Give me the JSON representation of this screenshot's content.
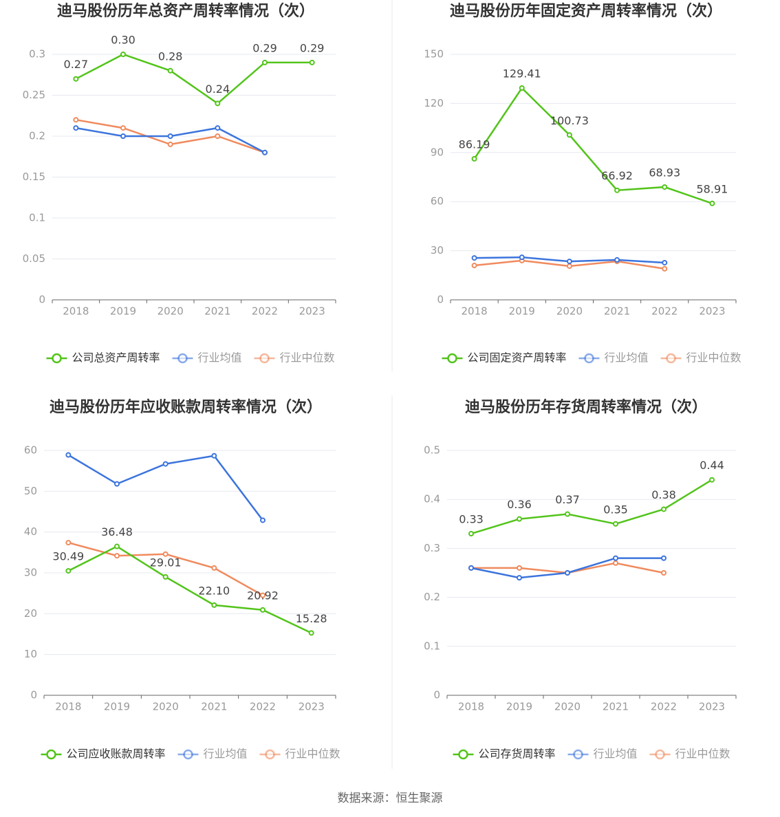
{
  "chart_data": [
    {
      "type": "line",
      "title": "迪马股份历年总资产周转率情况（次）",
      "categories": [
        "2018",
        "2019",
        "2020",
        "2021",
        "2022",
        "2023"
      ],
      "ylim": [
        0,
        0.3
      ],
      "yticks": [
        0,
        0.05,
        0.1,
        0.15,
        0.2,
        0.25,
        0.3
      ],
      "grid": true,
      "series": [
        {
          "name": "公司总资产周转率",
          "color": "#52c41a",
          "values": [
            0.27,
            0.3,
            0.28,
            0.24,
            0.29,
            0.29
          ],
          "value_labels": [
            "0.27",
            "0.30",
            "0.28",
            "0.24",
            "0.29",
            "0.29"
          ]
        },
        {
          "name": "行业均值",
          "color": "#3b74dd",
          "values": [
            0.21,
            0.2,
            0.2,
            0.21,
            0.18,
            null
          ]
        },
        {
          "name": "行业中位数",
          "color": "#f08a5d",
          "values": [
            0.22,
            0.21,
            0.19,
            0.2,
            0.18,
            null
          ]
        }
      ]
    },
    {
      "type": "line",
      "title": "迪马股份历年固定资产周转率情况（次）",
      "categories": [
        "2018",
        "2019",
        "2020",
        "2021",
        "2022",
        "2023"
      ],
      "ylim": [
        0,
        150
      ],
      "yticks": [
        0,
        30,
        60,
        90,
        120,
        150
      ],
      "grid": true,
      "series": [
        {
          "name": "公司固定资产周转率",
          "color": "#52c41a",
          "values": [
            86.19,
            129.41,
            100.73,
            66.92,
            68.93,
            58.91
          ]
        },
        {
          "name": "行业均值",
          "color": "#3b74dd",
          "values": [
            25.6,
            26,
            23.5,
            24.4,
            22.7,
            null
          ]
        },
        {
          "name": "行业中位数",
          "color": "#f08a5d",
          "values": [
            21,
            24,
            20.6,
            23.5,
            19,
            null
          ]
        }
      ]
    },
    {
      "type": "line",
      "title": "迪马股份历年应收账款周转率情况（次）",
      "categories": [
        "2018",
        "2019",
        "2020",
        "2021",
        "2022",
        "2023"
      ],
      "ylim": [
        0,
        60
      ],
      "yticks": [
        0,
        10,
        20,
        30,
        40,
        50,
        60
      ],
      "grid": true,
      "series": [
        {
          "name": "公司应收账款周转率",
          "color": "#52c41a",
          "values": [
            30.49,
            36.48,
            29.01,
            22.1,
            20.92,
            15.28
          ],
          "value_labels": [
            "30.49",
            "36.48",
            "29.01",
            "22.10",
            "20.92",
            "15.28"
          ]
        },
        {
          "name": "行业均值",
          "color": "#3b74dd",
          "values": [
            58.9,
            51.8,
            56.7,
            58.7,
            42.9,
            null
          ]
        },
        {
          "name": "行业中位数",
          "color": "#f08a5d",
          "values": [
            37.4,
            34.2,
            34.6,
            31.2,
            24.5,
            null
          ]
        }
      ]
    },
    {
      "type": "line",
      "title": "迪马股份历年存货周转率情况（次）",
      "categories": [
        "2018",
        "2019",
        "2020",
        "2021",
        "2022",
        "2023"
      ],
      "ylim": [
        0,
        0.5
      ],
      "yticks": [
        0,
        0.1,
        0.2,
        0.3,
        0.4,
        0.5
      ],
      "grid": true,
      "series": [
        {
          "name": "公司存货周转率",
          "color": "#52c41a",
          "values": [
            0.33,
            0.36,
            0.37,
            0.35,
            0.38,
            0.44
          ]
        },
        {
          "name": "行业均值",
          "color": "#3b74dd",
          "values": [
            0.26,
            0.24,
            0.25,
            0.28,
            0.28,
            null
          ]
        },
        {
          "name": "行业中位数",
          "color": "#f08a5d",
          "values": [
            0.26,
            0.26,
            0.25,
            0.27,
            0.25,
            null
          ]
        }
      ]
    }
  ],
  "source": "数据来源：恒生聚源"
}
